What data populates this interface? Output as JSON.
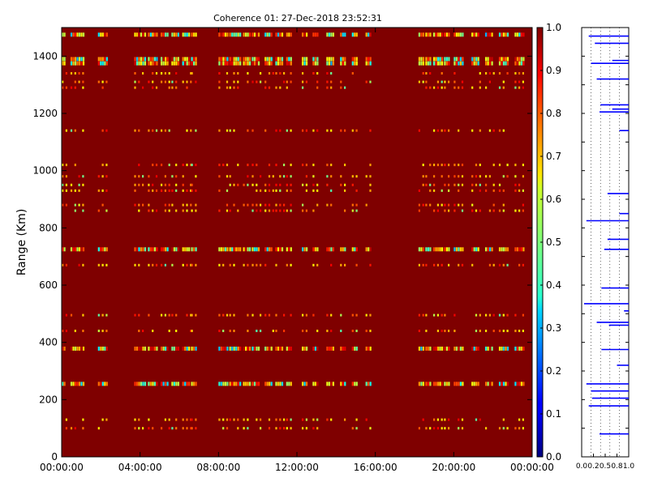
{
  "chart_data": [
    {
      "type": "heatmap",
      "title": "Coherence 01: 27-Dec-2018 23:52:31",
      "ylabel": "Range (Km)",
      "xlabel": "",
      "x_ticks": [
        "00:00:00",
        "04:00:00",
        "08:00:00",
        "12:00:00",
        "16:00:00",
        "20:00:00",
        "00:00:00"
      ],
      "y_ticks": [
        0,
        200,
        400,
        600,
        800,
        1000,
        1200,
        1400
      ],
      "xlim_hours": [
        0,
        24
      ],
      "ylim": [
        0,
        1500
      ],
      "background_value": 1.0,
      "colormap": "jet",
      "colorbar": {
        "range": [
          0.0,
          1.0
        ],
        "ticks": [
          "0.0",
          "0.1",
          "0.2",
          "0.3",
          "0.4",
          "0.5",
          "0.6",
          "0.7",
          "0.8",
          "0.9",
          "1.0"
        ]
      },
      "strong_bands_km": [
        1475,
        1390,
        1375,
        725,
        378,
        255
      ],
      "weak_bands_km": [
        1340,
        1310,
        1290,
        1140,
        1020,
        980,
        950,
        930,
        880,
        860,
        670,
        495,
        440,
        130,
        100
      ],
      "observation_hours": [
        [
          0.0,
          0.2
        ],
        [
          0.45,
          1.1
        ],
        [
          1.85,
          2.35
        ],
        [
          3.7,
          4.25
        ],
        [
          4.4,
          4.85
        ],
        [
          5.05,
          5.45
        ],
        [
          5.6,
          5.95
        ],
        [
          6.15,
          6.55
        ],
        [
          6.6,
          6.9
        ],
        [
          8.0,
          8.45
        ],
        [
          8.55,
          9.1
        ],
        [
          9.25,
          9.6
        ],
        [
          9.7,
          10.1
        ],
        [
          10.35,
          10.75
        ],
        [
          10.9,
          11.3
        ],
        [
          11.45,
          11.75
        ],
        [
          12.25,
          12.55
        ],
        [
          12.8,
          13.1
        ],
        [
          13.5,
          13.85
        ],
        [
          14.2,
          14.5
        ],
        [
          14.8,
          15.1
        ],
        [
          15.5,
          15.8
        ],
        [
          18.2,
          18.45
        ],
        [
          18.55,
          18.85
        ],
        [
          18.95,
          19.4
        ],
        [
          19.5,
          19.8
        ],
        [
          20.0,
          20.5
        ],
        [
          20.9,
          21.3
        ],
        [
          21.6,
          22.0
        ],
        [
          22.3,
          22.8
        ],
        [
          23.1,
          23.6
        ]
      ]
    },
    {
      "type": "line",
      "xlim": [
        0.0,
        1.0
      ],
      "x_ticks": [
        "0.0",
        "0.2",
        "0.5",
        "0.8",
        "1.0"
      ],
      "ylim": [
        0,
        1500
      ],
      "segments": [
        {
          "range_km": 1470,
          "from": 0.15,
          "to": 1.0
        },
        {
          "range_km": 1445,
          "from": 0.28,
          "to": 1.0
        },
        {
          "range_km": 1385,
          "from": 0.65,
          "to": 1.0
        },
        {
          "range_km": 1375,
          "from": 0.2,
          "to": 1.0
        },
        {
          "range_km": 1320,
          "from": 0.32,
          "to": 1.0
        },
        {
          "range_km": 1230,
          "from": 0.4,
          "to": 1.0
        },
        {
          "range_km": 1215,
          "from": 0.65,
          "to": 1.0
        },
        {
          "range_km": 1205,
          "from": 0.38,
          "to": 1.0
        },
        {
          "range_km": 1140,
          "from": 0.8,
          "to": 1.0
        },
        {
          "range_km": 920,
          "from": 0.55,
          "to": 1.0
        },
        {
          "range_km": 850,
          "from": 0.8,
          "to": 1.0
        },
        {
          "range_km": 825,
          "from": 0.1,
          "to": 1.0
        },
        {
          "range_km": 760,
          "from": 0.55,
          "to": 1.0
        },
        {
          "range_km": 725,
          "from": 0.48,
          "to": 1.0
        },
        {
          "range_km": 590,
          "from": 0.42,
          "to": 1.0
        },
        {
          "range_km": 535,
          "from": 0.05,
          "to": 1.0
        },
        {
          "range_km": 510,
          "from": 0.9,
          "to": 1.0
        },
        {
          "range_km": 470,
          "from": 0.32,
          "to": 1.0
        },
        {
          "range_km": 460,
          "from": 0.58,
          "to": 1.0
        },
        {
          "range_km": 375,
          "from": 0.42,
          "to": 1.0
        },
        {
          "range_km": 320,
          "from": 0.75,
          "to": 1.0
        },
        {
          "range_km": 255,
          "from": 0.1,
          "to": 1.0
        },
        {
          "range_km": 230,
          "from": 0.2,
          "to": 1.0
        },
        {
          "range_km": 205,
          "from": 0.22,
          "to": 1.0
        },
        {
          "range_km": 178,
          "from": 0.15,
          "to": 1.0
        },
        {
          "range_km": 80,
          "from": 0.38,
          "to": 1.0
        }
      ]
    }
  ]
}
